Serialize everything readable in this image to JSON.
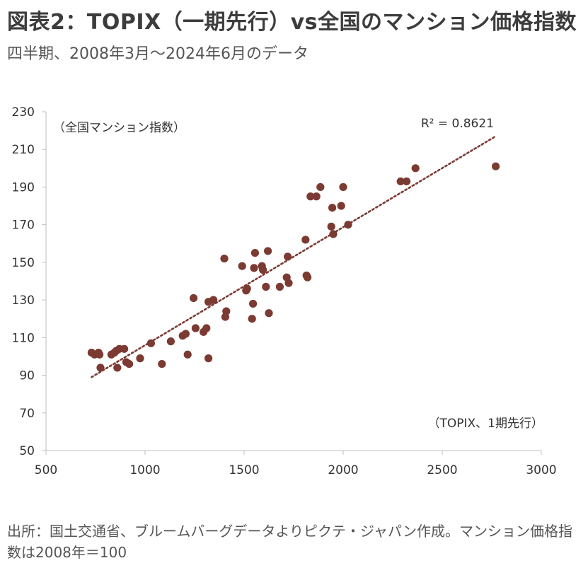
{
  "page": {
    "title": "図表2：TOPIX（一期先行）vs全国のマンション価格指数",
    "subtitle": "四半期、2008年3月～2024年6月のデータ",
    "source": "出所：国土交通省、ブルームバーグデータよりピクテ・ジャパン作成。マンション価格指数は2008年＝100"
  },
  "colors": {
    "marker": "#7b3a32",
    "trendline": "#7b3a32",
    "axis": "#bfbfbf",
    "text": "#333333"
  },
  "chart_data": {
    "type": "scatter",
    "title": "",
    "xlabel": "（TOPIX、1期先行）",
    "ylabel": "（全国マンション指数）",
    "xlim": [
      500,
      3000
    ],
    "ylim": [
      50,
      230
    ],
    "xticks": [
      500,
      1000,
      1500,
      2000,
      2500,
      3000
    ],
    "yticks": [
      50,
      70,
      90,
      110,
      130,
      150,
      170,
      190,
      210,
      230
    ],
    "grid": false,
    "trendline": {
      "type": "linear",
      "from": [
        730,
        89
      ],
      "to": [
        2770,
        217
      ],
      "label": "R² = 0.8621"
    },
    "series": [
      {
        "points": [
          [
            730,
            102
          ],
          [
            745,
            101
          ],
          [
            765,
            102
          ],
          [
            770,
            101
          ],
          [
            775,
            94
          ],
          [
            830,
            101
          ],
          [
            845,
            102
          ],
          [
            855,
            103
          ],
          [
            860,
            94
          ],
          [
            870,
            104
          ],
          [
            895,
            104
          ],
          [
            905,
            97
          ],
          [
            920,
            96
          ],
          [
            975,
            99
          ],
          [
            1030,
            107
          ],
          [
            1085,
            96
          ],
          [
            1130,
            108
          ],
          [
            1190,
            111
          ],
          [
            1205,
            112
          ],
          [
            1215,
            101
          ],
          [
            1245,
            131
          ],
          [
            1255,
            115
          ],
          [
            1295,
            113
          ],
          [
            1310,
            115
          ],
          [
            1320,
            99
          ],
          [
            1320,
            129
          ],
          [
            1345,
            130
          ],
          [
            1400,
            152
          ],
          [
            1405,
            121
          ],
          [
            1410,
            124
          ],
          [
            1490,
            148
          ],
          [
            1510,
            135
          ],
          [
            1515,
            136
          ],
          [
            1540,
            120
          ],
          [
            1545,
            128
          ],
          [
            1550,
            147
          ],
          [
            1555,
            155
          ],
          [
            1590,
            148
          ],
          [
            1595,
            146
          ],
          [
            1610,
            137
          ],
          [
            1620,
            156
          ],
          [
            1625,
            123
          ],
          [
            1680,
            137
          ],
          [
            1715,
            142
          ],
          [
            1720,
            153
          ],
          [
            1725,
            139
          ],
          [
            1810,
            162
          ],
          [
            1815,
            143
          ],
          [
            1820,
            142
          ],
          [
            1835,
            185
          ],
          [
            1865,
            185
          ],
          [
            1885,
            190
          ],
          [
            1940,
            169
          ],
          [
            1945,
            179
          ],
          [
            1950,
            165
          ],
          [
            1990,
            180
          ],
          [
            2000,
            190
          ],
          [
            2025,
            170
          ],
          [
            2290,
            193
          ],
          [
            2320,
            193
          ],
          [
            2365,
            200
          ],
          [
            2770,
            201
          ]
        ]
      }
    ]
  }
}
